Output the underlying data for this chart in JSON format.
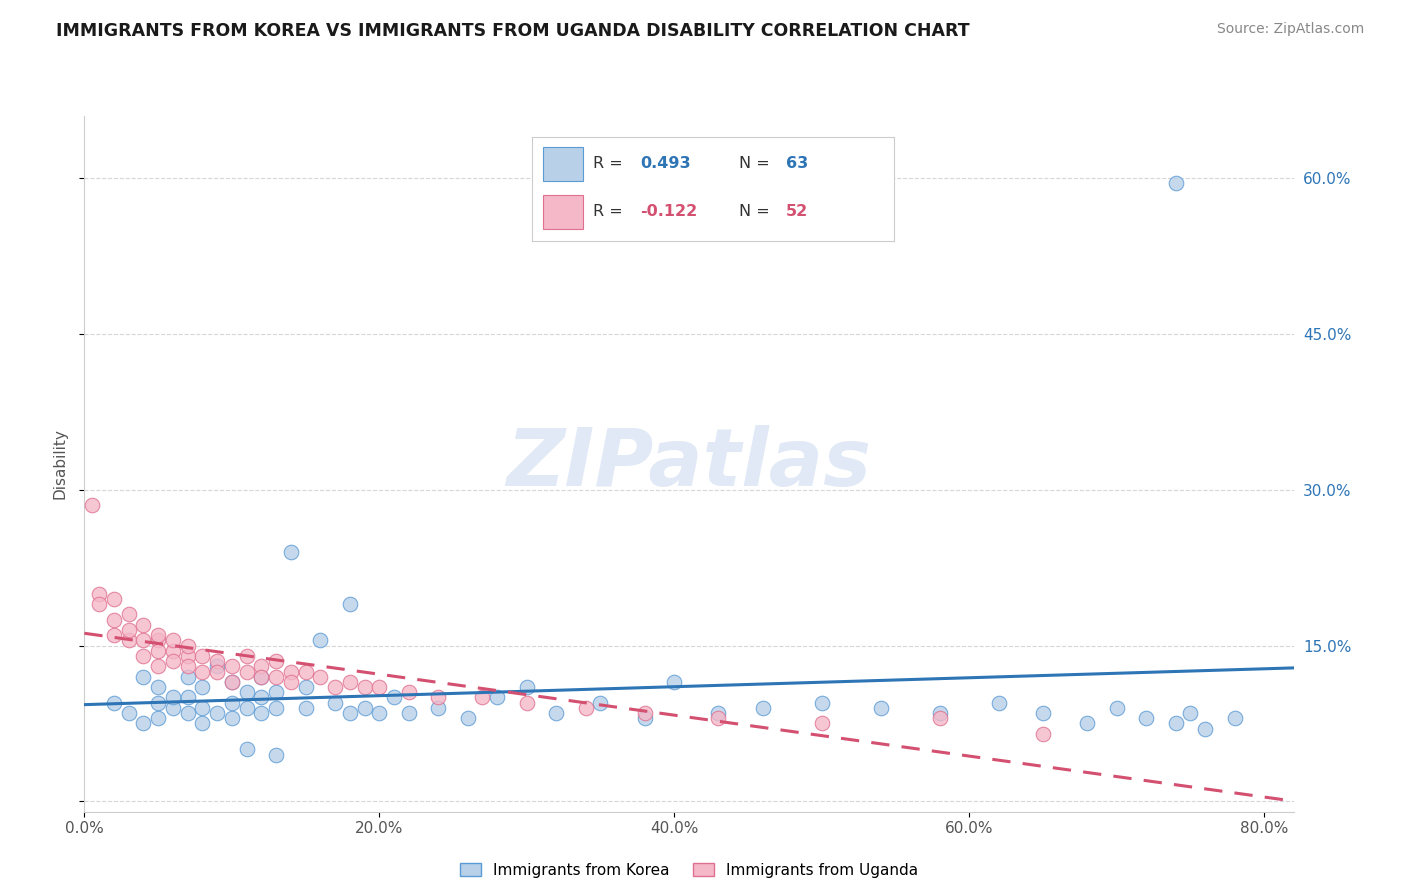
{
  "title": "IMMIGRANTS FROM KOREA VS IMMIGRANTS FROM UGANDA DISABILITY CORRELATION CHART",
  "source": "Source: ZipAtlas.com",
  "ylabel": "Disability",
  "watermark_text": "ZIPatlas",
  "legend_entries": [
    {
      "label": "Immigrants from Korea",
      "R": "0.493",
      "N": "63",
      "dot_color": "#b8d0e8",
      "dot_edge": "#5b9bd5",
      "line_color": "#2e75b6"
    },
    {
      "label": "Immigrants from Uganda",
      "R": "-0.122",
      "N": "52",
      "dot_color": "#f4b8c8",
      "dot_edge": "#e07090",
      "line_color": "#d45070"
    }
  ],
  "xlim": [
    0.0,
    0.82
  ],
  "ylim": [
    -0.01,
    0.66
  ],
  "xtick_vals": [
    0.0,
    0.2,
    0.4,
    0.6,
    0.8
  ],
  "xtick_labels": [
    "0.0%",
    "20.0%",
    "40.0%",
    "60.0%",
    "80.0%"
  ],
  "ytick_vals": [
    0.0,
    0.15,
    0.3,
    0.45,
    0.6
  ],
  "ytick_labels": [
    "",
    "15.0%",
    "30.0%",
    "45.0%",
    "60.0%"
  ],
  "grid_color": "#cccccc",
  "bg_color": "#ffffff",
  "korea_x": [
    0.02,
    0.03,
    0.04,
    0.04,
    0.05,
    0.05,
    0.05,
    0.06,
    0.06,
    0.07,
    0.07,
    0.07,
    0.08,
    0.08,
    0.08,
    0.09,
    0.09,
    0.1,
    0.1,
    0.1,
    0.11,
    0.11,
    0.12,
    0.12,
    0.12,
    0.13,
    0.13,
    0.14,
    0.15,
    0.15,
    0.16,
    0.17,
    0.18,
    0.18,
    0.19,
    0.2,
    0.21,
    0.22,
    0.24,
    0.26,
    0.28,
    0.3,
    0.32,
    0.35,
    0.38,
    0.4,
    0.43,
    0.46,
    0.5,
    0.54,
    0.58,
    0.62,
    0.65,
    0.68,
    0.7,
    0.72,
    0.74,
    0.75,
    0.76,
    0.78,
    0.11,
    0.13,
    0.74
  ],
  "korea_y": [
    0.095,
    0.085,
    0.075,
    0.12,
    0.08,
    0.095,
    0.11,
    0.09,
    0.1,
    0.085,
    0.1,
    0.12,
    0.075,
    0.09,
    0.11,
    0.085,
    0.13,
    0.08,
    0.095,
    0.115,
    0.09,
    0.105,
    0.085,
    0.1,
    0.12,
    0.09,
    0.105,
    0.24,
    0.09,
    0.11,
    0.155,
    0.095,
    0.085,
    0.19,
    0.09,
    0.085,
    0.1,
    0.085,
    0.09,
    0.08,
    0.1,
    0.11,
    0.085,
    0.095,
    0.08,
    0.115,
    0.085,
    0.09,
    0.095,
    0.09,
    0.085,
    0.095,
    0.085,
    0.075,
    0.09,
    0.08,
    0.075,
    0.085,
    0.07,
    0.08,
    0.05,
    0.045,
    0.595
  ],
  "uganda_x": [
    0.005,
    0.01,
    0.01,
    0.02,
    0.02,
    0.02,
    0.03,
    0.03,
    0.03,
    0.04,
    0.04,
    0.04,
    0.05,
    0.05,
    0.05,
    0.05,
    0.06,
    0.06,
    0.06,
    0.07,
    0.07,
    0.07,
    0.08,
    0.08,
    0.09,
    0.09,
    0.1,
    0.1,
    0.11,
    0.11,
    0.12,
    0.12,
    0.13,
    0.13,
    0.14,
    0.14,
    0.15,
    0.16,
    0.17,
    0.18,
    0.19,
    0.2,
    0.22,
    0.24,
    0.27,
    0.3,
    0.34,
    0.38,
    0.43,
    0.5,
    0.58,
    0.65
  ],
  "uganda_y": [
    0.285,
    0.2,
    0.19,
    0.175,
    0.16,
    0.195,
    0.155,
    0.18,
    0.165,
    0.155,
    0.17,
    0.14,
    0.155,
    0.145,
    0.16,
    0.13,
    0.145,
    0.135,
    0.155,
    0.14,
    0.13,
    0.15,
    0.14,
    0.125,
    0.135,
    0.125,
    0.13,
    0.115,
    0.125,
    0.14,
    0.13,
    0.12,
    0.135,
    0.12,
    0.125,
    0.115,
    0.125,
    0.12,
    0.11,
    0.115,
    0.11,
    0.11,
    0.105,
    0.1,
    0.1,
    0.095,
    0.09,
    0.085,
    0.08,
    0.075,
    0.08,
    0.065
  ]
}
